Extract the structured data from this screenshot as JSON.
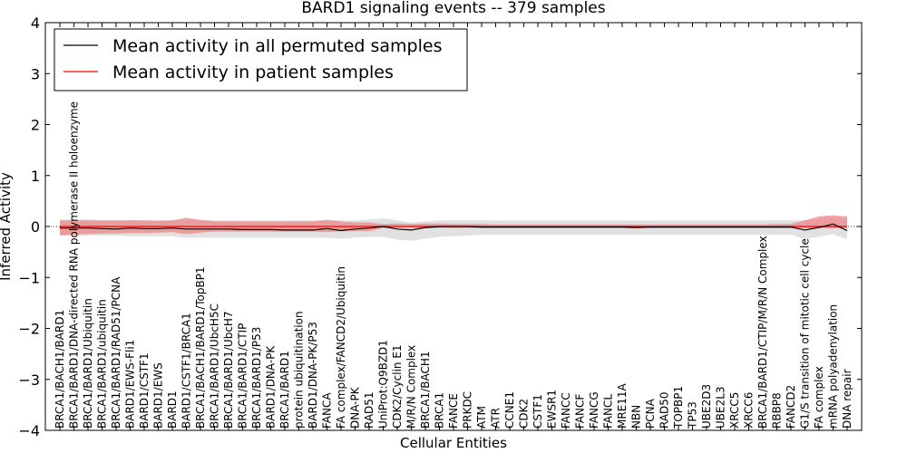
{
  "chart_data": {
    "type": "line",
    "title": "BARD1 signaling events -- 379 samples",
    "xlabel": "Cellular Entities",
    "ylabel": "Inferred Activity",
    "ylim": [
      -4,
      4
    ],
    "yticks": [
      -4,
      -3,
      -2,
      -1,
      0,
      1,
      2,
      3,
      4
    ],
    "ytick_labels": [
      "−4",
      "−3",
      "−2",
      "−1",
      "0",
      "1",
      "2",
      "3",
      "4"
    ],
    "legend": {
      "position": "top-left",
      "entries": [
        {
          "label": "Mean activity in all permuted samples",
          "color": "#000000"
        },
        {
          "label": "Mean activity in patient samples",
          "color": "#ff0000"
        }
      ]
    },
    "colors": {
      "patient_line": "#ff0000",
      "patient_band": "#f08080",
      "permuted_line": "#000000",
      "permuted_band": "#c8c8c8",
      "zero_line": "#000000"
    },
    "categories": [
      "BRCA1/BACH1/BARD1",
      "BRCA1/BARD1/DNA-directed RNA polymerase II holoenzyme",
      "BRCA1/BARD1/Ubiquitin",
      "BRCA1/BARD1/ubiquitin",
      "BRCA1/BARD1/RAD51/PCNA",
      "BARD1/EWS-Fli1",
      "BARD1/CSTF1",
      "BARD1/EWS",
      "BARD1",
      "BARD1/CSTF1/BRCA1",
      "BRCA1/BACH1/BARD1/TopBP1",
      "BRCA1/BARD1/UbcH5C",
      "BRCA1/BARD1/UbcH7",
      "BRCA1/BARD1/CTIP",
      "BRCA1/BARD1/P53",
      "BARD1/DNA-PK",
      "BRCA1/BARD1",
      "protein ubiquitination",
      "BARD1/DNA-PK/P53",
      "FANCA",
      "FA complex/FANCD2/Ubiquitin",
      "DNA-PK",
      "RAD51",
      "UniProt:Q9BZD1",
      "CDK2/Cyclin E1",
      "M/R/N Complex",
      "BRCA1/BACH1",
      "BRCA1",
      "FANCE",
      "PRKDC",
      "ATM",
      "ATR",
      "CCNE1",
      "CDK2",
      "CSTF1",
      "EWSR1",
      "FANCC",
      "FANCF",
      "FANCG",
      "FANCL",
      "MRE11A",
      "NBN",
      "PCNA",
      "RAD50",
      "TOPBP1",
      "TP53",
      "UBE2D3",
      "UBE2L3",
      "XRCC5",
      "XRCC6",
      "BRCA1/BARD1/CTIP/M/R/N Complex",
      "RBBP8",
      "FANCD2",
      "G1/S transition of mitotic cell cycle",
      "FA complex",
      "mRNA polyadenylation",
      "DNA repair"
    ],
    "series": [
      {
        "name": "Mean activity in patient samples",
        "values": [
          0.0,
          0.0,
          0.0,
          0.0,
          0.0,
          0.0,
          0.0,
          0.0,
          0.0,
          0.0,
          0.0,
          0.0,
          0.0,
          0.0,
          0.0,
          0.0,
          0.0,
          0.0,
          0.0,
          0.0,
          0.0,
          0.0,
          0.0,
          0.0,
          0.0,
          0.0,
          0.0,
          0.0,
          0.0,
          0.0,
          0.0,
          0.0,
          0.0,
          0.0,
          0.0,
          0.0,
          0.0,
          0.0,
          0.0,
          0.0,
          0.0,
          0.0,
          0.0,
          0.0,
          0.0,
          0.0,
          0.0,
          0.0,
          0.0,
          0.0,
          0.0,
          0.0,
          0.0,
          0.0,
          0.0,
          0.0,
          0.0
        ],
        "lower": [
          -0.17,
          -0.16,
          -0.15,
          -0.14,
          -0.14,
          -0.13,
          -0.13,
          -0.12,
          -0.11,
          -0.15,
          -0.12,
          -0.1,
          -0.1,
          -0.1,
          -0.1,
          -0.1,
          -0.1,
          -0.1,
          -0.1,
          -0.11,
          -0.09,
          -0.09,
          -0.09,
          -0.03,
          -0.02,
          -0.02,
          -0.03,
          -0.03,
          -0.03,
          -0.03,
          -0.03,
          -0.03,
          -0.03,
          -0.03,
          -0.03,
          -0.03,
          -0.03,
          -0.03,
          -0.03,
          -0.03,
          -0.03,
          -0.03,
          -0.03,
          -0.03,
          -0.03,
          -0.03,
          -0.03,
          -0.03,
          -0.03,
          -0.03,
          -0.03,
          -0.03,
          -0.03,
          -0.03,
          -0.03,
          -0.03,
          -0.03
        ],
        "upper": [
          0.12,
          0.12,
          0.12,
          0.12,
          0.12,
          0.12,
          0.12,
          0.11,
          0.12,
          0.17,
          0.13,
          0.1,
          0.1,
          0.1,
          0.1,
          0.1,
          0.1,
          0.1,
          0.1,
          0.13,
          0.1,
          0.08,
          0.08,
          0.05,
          0.06,
          0.05,
          0.06,
          0.06,
          0.05,
          0.05,
          0.05,
          0.04,
          0.04,
          0.04,
          0.04,
          0.04,
          0.04,
          0.04,
          0.04,
          0.04,
          0.04,
          0.04,
          0.04,
          0.04,
          0.04,
          0.04,
          0.04,
          0.04,
          0.04,
          0.04,
          0.04,
          0.05,
          0.05,
          0.12,
          0.2,
          0.22,
          0.2
        ]
      },
      {
        "name": "Mean activity in all permuted samples",
        "values": [
          -0.03,
          -0.03,
          -0.03,
          -0.04,
          -0.05,
          -0.03,
          -0.04,
          -0.04,
          -0.03,
          -0.05,
          -0.05,
          -0.05,
          -0.05,
          -0.06,
          -0.06,
          -0.06,
          -0.07,
          -0.07,
          -0.07,
          -0.04,
          -0.08,
          -0.05,
          -0.03,
          0.0,
          -0.05,
          -0.07,
          -0.02,
          0.0,
          0.0,
          0.0,
          -0.01,
          -0.01,
          -0.01,
          -0.01,
          -0.01,
          -0.01,
          -0.01,
          -0.01,
          -0.01,
          -0.01,
          -0.01,
          -0.02,
          -0.01,
          -0.01,
          -0.01,
          -0.01,
          -0.01,
          -0.01,
          -0.01,
          -0.01,
          -0.01,
          -0.01,
          -0.01,
          -0.07,
          -0.02,
          0.05,
          -0.08
        ],
        "lower": [
          -0.18,
          -0.18,
          -0.18,
          -0.18,
          -0.18,
          -0.19,
          -0.19,
          -0.19,
          -0.19,
          -0.22,
          -0.22,
          -0.22,
          -0.22,
          -0.22,
          -0.22,
          -0.22,
          -0.22,
          -0.22,
          -0.22,
          -0.22,
          -0.24,
          -0.22,
          -0.2,
          -0.2,
          -0.26,
          -0.28,
          -0.24,
          -0.2,
          -0.19,
          -0.18,
          -0.16,
          -0.16,
          -0.16,
          -0.16,
          -0.16,
          -0.16,
          -0.16,
          -0.16,
          -0.16,
          -0.16,
          -0.16,
          -0.16,
          -0.16,
          -0.16,
          -0.16,
          -0.16,
          -0.16,
          -0.16,
          -0.16,
          -0.16,
          -0.16,
          -0.16,
          -0.16,
          -0.25,
          -0.2,
          -0.15,
          -0.25
        ],
        "upper": [
          0.14,
          0.14,
          0.14,
          0.12,
          0.12,
          0.13,
          0.12,
          0.12,
          0.12,
          0.13,
          0.13,
          0.13,
          0.12,
          0.12,
          0.12,
          0.12,
          0.12,
          0.12,
          0.12,
          0.13,
          0.12,
          0.12,
          0.14,
          0.16,
          0.12,
          0.08,
          0.1,
          0.12,
          0.12,
          0.12,
          0.12,
          0.12,
          0.12,
          0.12,
          0.12,
          0.12,
          0.12,
          0.12,
          0.12,
          0.12,
          0.12,
          0.12,
          0.12,
          0.12,
          0.12,
          0.12,
          0.12,
          0.12,
          0.12,
          0.12,
          0.12,
          0.12,
          0.12,
          0.12,
          0.15,
          0.18,
          0.15
        ]
      }
    ],
    "zero_line": {
      "y": 0,
      "style": "dotted"
    }
  }
}
